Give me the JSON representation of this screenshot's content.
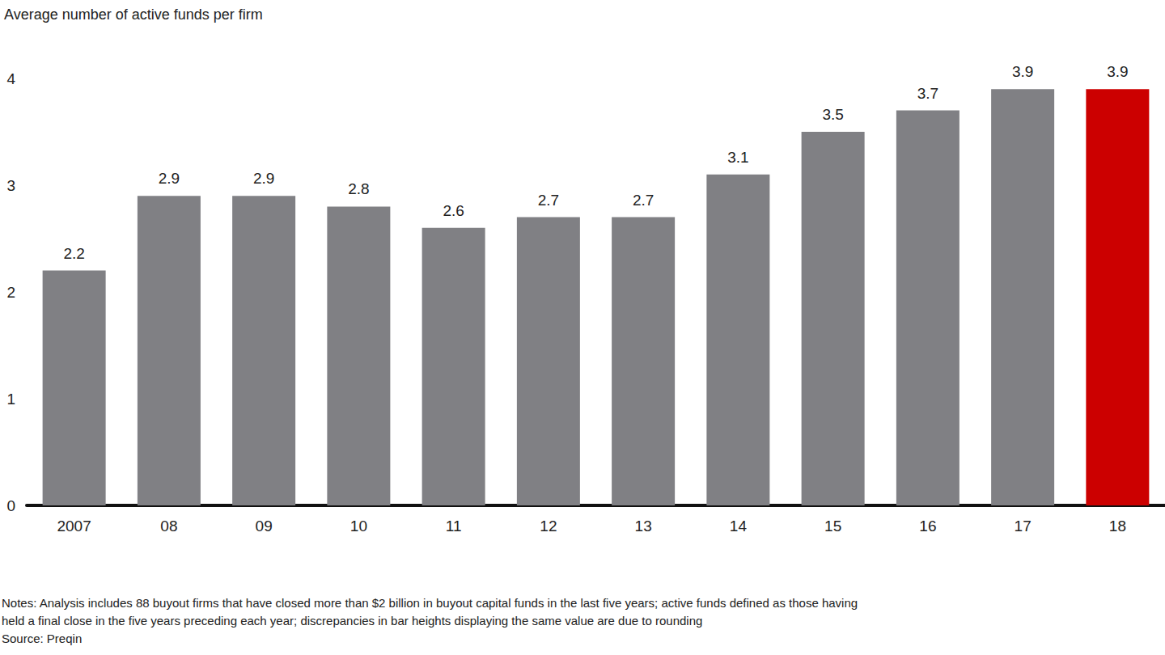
{
  "chart_data": {
    "type": "bar",
    "title": "Average number of active funds per firm",
    "categories": [
      "2007",
      "08",
      "09",
      "10",
      "11",
      "12",
      "13",
      "14",
      "15",
      "16",
      "17",
      "18"
    ],
    "values": [
      2.2,
      2.9,
      2.9,
      2.8,
      2.6,
      2.7,
      2.7,
      3.1,
      3.5,
      3.7,
      3.9,
      3.9
    ],
    "colors": [
      "#808084",
      "#808084",
      "#808084",
      "#808084",
      "#808084",
      "#808084",
      "#808084",
      "#808084",
      "#808084",
      "#808084",
      "#808084",
      "#cc0000"
    ],
    "ylim": [
      0,
      4
    ],
    "yticks": [
      0,
      1,
      2,
      3,
      4
    ],
    "grid": false,
    "data_labels": true,
    "notes": [
      "Notes: Analysis includes 88 buyout firms that have closed more than $2 billion in buyout capital funds in the last five years; active funds defined as those having",
      "held a final close in the five years preceding each year; discrepancies in bar heights displaying the same value are due to rounding"
    ],
    "source": "Source: Preqin"
  }
}
